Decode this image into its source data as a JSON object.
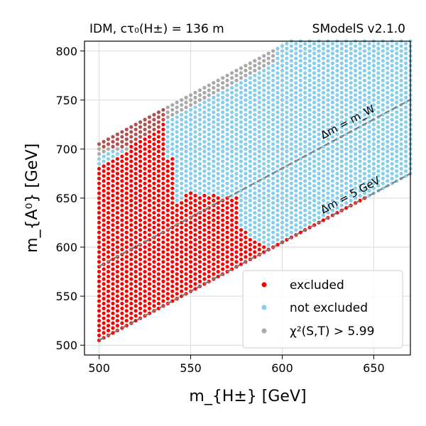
{
  "chart_data": {
    "type": "scatter",
    "title_left": "IDM, cτ₀(H±) = 136 m",
    "title_right": "SModelS v2.1.0",
    "xlabel": "m_{H±} [GeV]",
    "ylabel": "m_{A⁰} [GeV]",
    "xlim": [
      492,
      670
    ],
    "ylim": [
      490,
      810
    ],
    "xticks": [
      "500",
      "550",
      "600",
      "650"
    ],
    "yticks": [
      "500",
      "550",
      "600",
      "650",
      "700",
      "750",
      "800"
    ],
    "grid": true,
    "legend_position": "lower-right",
    "scan": {
      "x_start": 500,
      "x_step": 2.5,
      "y_step": 5,
      "lower_band_offset_gev": 5,
      "upper_band_offset_gev": 0
    },
    "series": [
      {
        "name": "excluded",
        "color": "#ff0000",
        "description_points": [
          [
            500,
            505
          ],
          [
            500,
            680
          ],
          [
            505,
            505
          ],
          [
            520,
            705
          ],
          [
            535,
            725
          ],
          [
            540,
            690
          ],
          [
            545,
            645
          ],
          [
            550,
            655
          ],
          [
            575,
            650
          ],
          [
            577.5,
            620
          ],
          [
            590,
            600
          ],
          [
            600,
            605
          ],
          [
            640,
            645
          ]
        ]
      },
      {
        "name": "not excluded",
        "color": "#87ceeb",
        "description_points": [
          [
            540,
            745
          ],
          [
            545,
            755
          ],
          [
            560,
            770
          ],
          [
            580,
            795
          ],
          [
            600,
            805
          ],
          [
            620,
            810
          ],
          [
            670,
            810
          ],
          [
            670,
            680
          ],
          [
            600,
            605
          ],
          [
            590,
            610
          ]
        ]
      },
      {
        "name": "χ²(S,T) > 5.99",
        "color": "#a9a9a9",
        "description_points": [
          [
            500,
            705
          ],
          [
            510,
            715
          ],
          [
            520,
            725
          ],
          [
            530,
            740
          ],
          [
            545,
            750
          ],
          [
            560,
            765
          ],
          [
            575,
            780
          ],
          [
            590,
            800
          ]
        ]
      }
    ],
    "reference_lines": [
      {
        "label": "Δm = m_W",
        "x": [
          500,
          670
        ],
        "y": [
          580.4,
          750.4
        ],
        "color": "#808080"
      },
      {
        "label": "Δm = 5 GeV",
        "x": [
          500,
          670
        ],
        "y": [
          505,
          675
        ],
        "color": "#808080"
      }
    ],
    "legend": [
      "excluded",
      "not excluded",
      "χ²(S,T) > 5.99"
    ]
  }
}
